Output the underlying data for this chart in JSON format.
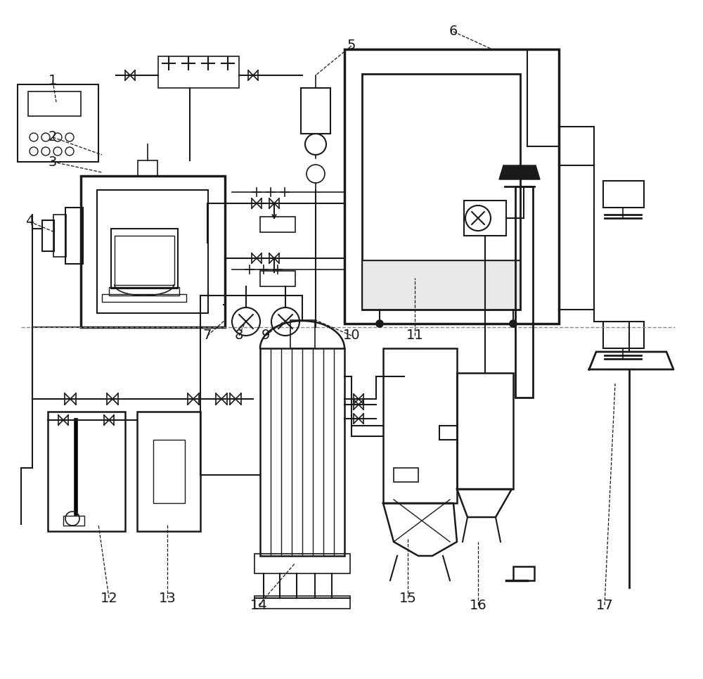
{
  "background": "#ffffff",
  "line_color": "#1a1a1a",
  "line_width": 1.5
}
